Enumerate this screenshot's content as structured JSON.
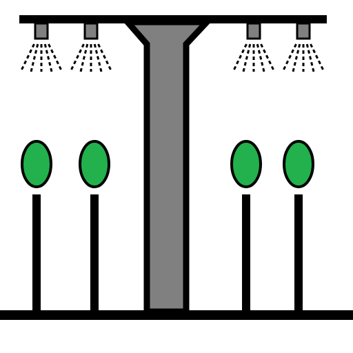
{
  "scene": {
    "subject": "irrigation-sprinkler-icon",
    "colors": {
      "background": "#ffffff",
      "outline": "#000000",
      "pipe_fill": "#808080",
      "plant_fill": "#22b14c"
    },
    "sprinkler_heads": [
      {
        "name": "sprinkler-head-1",
        "icon": "sprinkler-icon"
      },
      {
        "name": "sprinkler-head-2",
        "icon": "sprinkler-icon"
      },
      {
        "name": "sprinkler-head-3",
        "icon": "sprinkler-icon"
      },
      {
        "name": "sprinkler-head-4",
        "icon": "sprinkler-icon"
      }
    ],
    "plants": [
      {
        "name": "plant-1",
        "icon": "leaf-icon"
      },
      {
        "name": "plant-2",
        "icon": "leaf-icon"
      },
      {
        "name": "plant-3",
        "icon": "leaf-icon"
      },
      {
        "name": "plant-4",
        "icon": "leaf-icon"
      }
    ]
  }
}
